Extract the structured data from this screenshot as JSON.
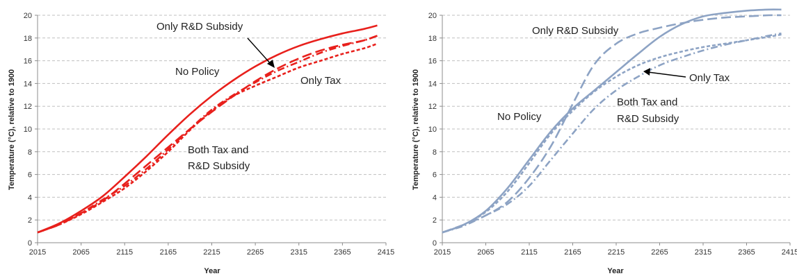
{
  "chart_data": [
    {
      "type": "line",
      "xlabel": "Year",
      "ylabel": "Temperature (°C), relative to 1900",
      "xlim": [
        2015,
        2415
      ],
      "ylim": [
        0,
        20
      ],
      "xticks": [
        2015,
        2065,
        2115,
        2165,
        2215,
        2265,
        2315,
        2365,
        2415
      ],
      "yticks": [
        0,
        2,
        4,
        6,
        8,
        10,
        12,
        14,
        16,
        18,
        20
      ],
      "grid": "horizontal-dashed",
      "color": "#e8201c",
      "series": [
        {
          "name": "No Policy",
          "style": "solid",
          "x": [
            2015,
            2040,
            2065,
            2090,
            2115,
            2140,
            2165,
            2190,
            2215,
            2240,
            2265,
            2290,
            2315,
            2340,
            2365,
            2390,
            2405
          ],
          "y": [
            0.9,
            1.7,
            2.8,
            4.1,
            5.8,
            7.6,
            9.5,
            11.3,
            12.9,
            14.3,
            15.5,
            16.5,
            17.3,
            17.9,
            18.4,
            18.8,
            19.1
          ]
        },
        {
          "name": "Only R&D Subsidy",
          "style": "longdash",
          "x": [
            2015,
            2040,
            2065,
            2090,
            2115,
            2140,
            2165,
            2190,
            2215,
            2240,
            2265,
            2290,
            2315,
            2340,
            2365,
            2390,
            2405
          ],
          "y": [
            0.9,
            1.6,
            2.6,
            3.7,
            5.2,
            6.8,
            8.4,
            10.0,
            11.5,
            12.9,
            14.2,
            15.3,
            16.2,
            16.9,
            17.4,
            17.8,
            18.2
          ]
        },
        {
          "name": "Only Tax",
          "style": "dashdot",
          "x": [
            2015,
            2040,
            2065,
            2090,
            2115,
            2140,
            2165,
            2190,
            2215,
            2240,
            2265,
            2290,
            2315,
            2340,
            2365,
            2390,
            2405
          ],
          "y": [
            0.9,
            1.6,
            2.6,
            3.8,
            5.0,
            6.5,
            8.2,
            10.0,
            11.7,
            13.0,
            14.1,
            15.1,
            15.9,
            16.7,
            17.3,
            17.8,
            18.2
          ]
        },
        {
          "name": "Both Tax and R&D Subsidy",
          "style": "shortdash",
          "x": [
            2015,
            2040,
            2065,
            2090,
            2115,
            2140,
            2165,
            2190,
            2215,
            2240,
            2265,
            2290,
            2315,
            2340,
            2365,
            2390,
            2405
          ],
          "y": [
            0.9,
            1.6,
            2.5,
            3.6,
            4.8,
            6.3,
            8.0,
            9.9,
            11.6,
            12.9,
            13.8,
            14.6,
            15.4,
            16.0,
            16.6,
            17.1,
            17.5
          ]
        }
      ],
      "annotations": [
        {
          "text": "Only R&D Subsidy"
        },
        {
          "text": "No Policy"
        },
        {
          "text": "Only Tax"
        },
        {
          "text": "Both Tax and"
        },
        {
          "text": "R&D Subsidy"
        }
      ]
    },
    {
      "type": "line",
      "xlabel": "Year",
      "ylabel": "Temperature (°C), relative to 1900",
      "xlim": [
        2015,
        2415
      ],
      "ylim": [
        0,
        20
      ],
      "xticks": [
        2015,
        2065,
        2115,
        2165,
        2215,
        2265,
        2315,
        2365,
        2415
      ],
      "yticks": [
        0,
        2,
        4,
        6,
        8,
        10,
        12,
        14,
        16,
        18,
        20
      ],
      "grid": "horizontal-dashed",
      "color": "#8da3c4",
      "series": [
        {
          "name": "No Policy",
          "style": "solid",
          "x": [
            2015,
            2040,
            2065,
            2090,
            2115,
            2140,
            2165,
            2190,
            2215,
            2240,
            2265,
            2290,
            2315,
            2340,
            2365,
            2390,
            2405
          ],
          "y": [
            0.9,
            1.6,
            2.8,
            4.8,
            7.3,
            9.8,
            11.8,
            13.4,
            15.0,
            16.6,
            18.1,
            19.2,
            19.9,
            20.2,
            20.4,
            20.5,
            20.5
          ]
        },
        {
          "name": "Only R&D Subsidy",
          "style": "longdash",
          "x": [
            2015,
            2040,
            2065,
            2090,
            2115,
            2140,
            2165,
            2190,
            2215,
            2240,
            2265,
            2290,
            2315,
            2340,
            2365,
            2390,
            2405
          ],
          "y": [
            0.9,
            1.6,
            2.4,
            3.6,
            5.7,
            8.5,
            12.2,
            15.7,
            17.5,
            18.4,
            18.9,
            19.3,
            19.6,
            19.8,
            19.9,
            20.0,
            20.0
          ]
        },
        {
          "name": "Only Tax",
          "style": "shortdash",
          "x": [
            2015,
            2040,
            2065,
            2090,
            2115,
            2140,
            2165,
            2190,
            2215,
            2240,
            2265,
            2290,
            2315,
            2340,
            2365,
            2390,
            2405
          ],
          "y": [
            0.9,
            1.6,
            2.7,
            4.5,
            7.0,
            9.6,
            11.6,
            13.3,
            14.6,
            15.6,
            16.3,
            16.8,
            17.2,
            17.5,
            17.8,
            18.1,
            18.3
          ]
        },
        {
          "name": "Both Tax and R&D Subsidy",
          "style": "dashdot",
          "x": [
            2015,
            2040,
            2065,
            2090,
            2115,
            2140,
            2165,
            2190,
            2215,
            2240,
            2265,
            2290,
            2315,
            2340,
            2365,
            2390,
            2405
          ],
          "y": [
            0.9,
            1.5,
            2.4,
            3.4,
            5.0,
            7.3,
            9.6,
            11.8,
            13.4,
            14.6,
            15.6,
            16.3,
            16.9,
            17.4,
            17.8,
            18.2,
            18.4
          ]
        }
      ],
      "annotations": [
        {
          "text": "Only R&D Subsidy"
        },
        {
          "text": "Only Tax"
        },
        {
          "text": "No Policy"
        },
        {
          "text": "Both Tax and"
        },
        {
          "text": "R&D Subsidy"
        }
      ]
    }
  ]
}
